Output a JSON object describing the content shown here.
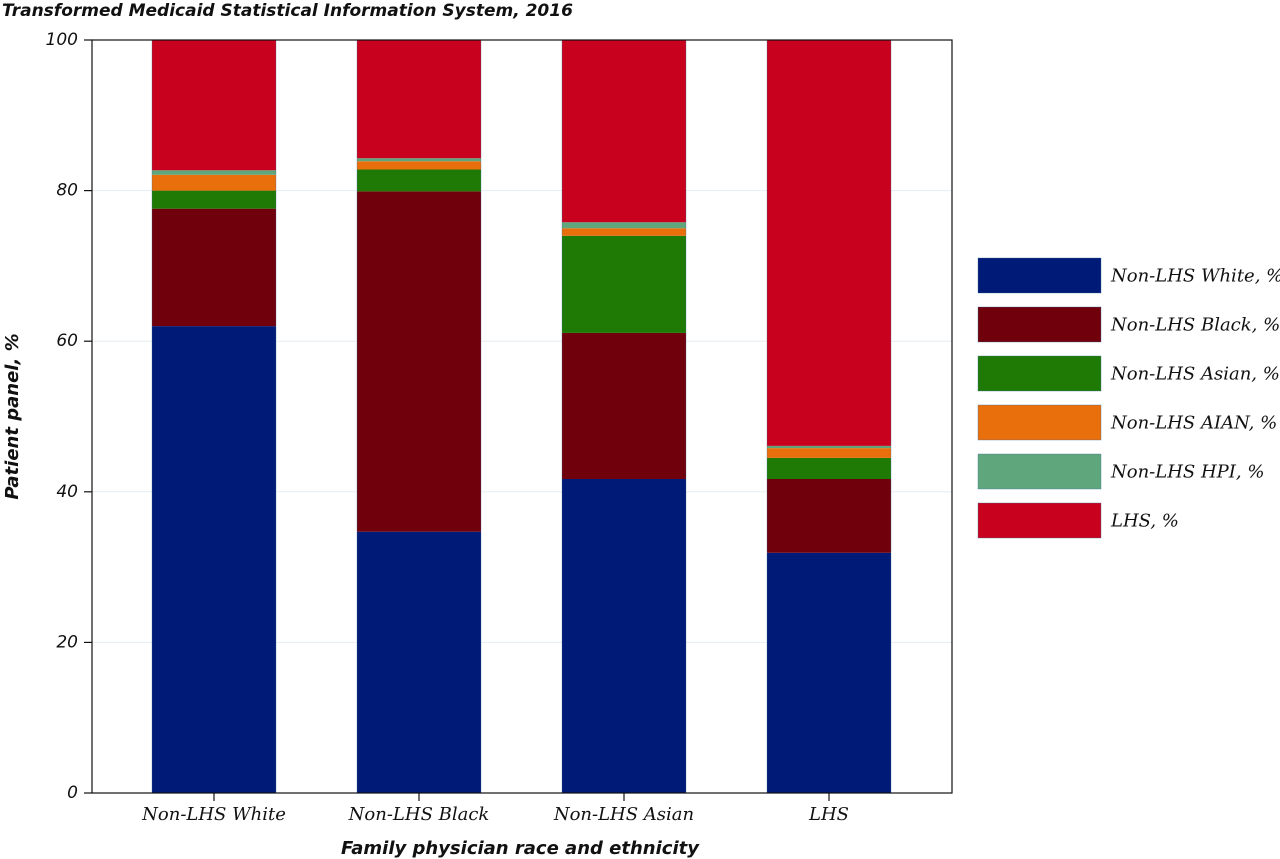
{
  "chart_data": {
    "type": "bar",
    "stacked": true,
    "title": "Transformed Medicaid Statistical Information System, 2016",
    "xlabel": "Family physician race and ethnicity",
    "ylabel": "Patient panel, %",
    "ylim": [
      0,
      100
    ],
    "yticks": [
      0,
      20,
      40,
      60,
      80,
      100
    ],
    "ytick_labels": [
      "0",
      "20",
      "40",
      "60",
      "80",
      "100"
    ],
    "grid": true,
    "legend_position": "right",
    "categories": [
      "Non-LHS White",
      "Non-LHS Black",
      "Non-LHS Asian",
      "LHS"
    ],
    "series": [
      {
        "name": "Non-LHS White, %",
        "color": "#001a78",
        "values": [
          62.0,
          34.7,
          41.7,
          31.9
        ]
      },
      {
        "name": "Non-LHS Black, %",
        "color": "#70000c",
        "values": [
          15.6,
          45.2,
          19.4,
          9.8
        ]
      },
      {
        "name": "Non-LHS Asian, %",
        "color": "#1e7a04",
        "values": [
          2.4,
          2.9,
          12.9,
          2.8
        ]
      },
      {
        "name": "Non-LHS AIAN, %",
        "color": "#e96e0c",
        "values": [
          2.1,
          1.1,
          1.0,
          1.3
        ]
      },
      {
        "name": "Non-LHS HPI, %",
        "color": "#5fa67c",
        "values": [
          0.6,
          0.4,
          0.8,
          0.3
        ]
      },
      {
        "name": "LHS, %",
        "color": "#c8021e",
        "values": [
          17.3,
          15.7,
          24.2,
          53.9
        ]
      }
    ]
  }
}
